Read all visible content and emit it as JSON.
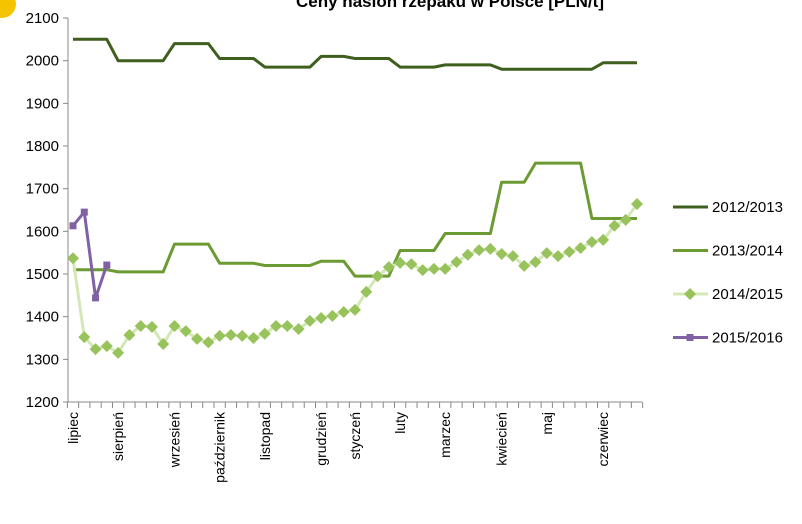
{
  "chart_data": {
    "type": "line",
    "title": "Ceny nasion rzepaku w Polsce [PLN/t]",
    "categories": [
      "lipiec",
      null,
      null,
      null,
      "sierpień",
      null,
      null,
      null,
      null,
      "wrzesień",
      null,
      null,
      null,
      "październik",
      null,
      null,
      null,
      "listopad",
      null,
      null,
      null,
      null,
      "grudzień",
      null,
      null,
      "styczeń",
      null,
      null,
      null,
      "luty",
      null,
      null,
      null,
      "marzec",
      null,
      null,
      null,
      null,
      "kwiecień",
      null,
      null,
      null,
      "maj",
      null,
      null,
      null,
      null,
      "czerwiec",
      null,
      null,
      null
    ],
    "ylim": [
      1200,
      2100
    ],
    "yticks": [
      1200,
      1300,
      1400,
      1500,
      1600,
      1700,
      1800,
      1900,
      2000,
      2100
    ],
    "grid": false,
    "legend": "right",
    "series": [
      {
        "name": "2012/2013",
        "color": "#3f5f1f",
        "marker": "none",
        "values": [
          2050,
          2050,
          2050,
          2050,
          2000,
          2000,
          2000,
          2000,
          2000,
          2040,
          2040,
          2040,
          2040,
          2005,
          2005,
          2005,
          2005,
          1985,
          1985,
          1985,
          1985,
          1985,
          2010,
          2010,
          2010,
          2005,
          2005,
          2005,
          2005,
          1985,
          1985,
          1985,
          1985,
          1990,
          1990,
          1990,
          1990,
          1990,
          1980,
          1980,
          1980,
          1980,
          1980,
          1980,
          1980,
          1980,
          1980,
          1995,
          1995,
          1995,
          1995
        ]
      },
      {
        "name": "2013/2014",
        "color": "#6b9b32",
        "marker": "none",
        "values": [
          1510,
          1510,
          1510,
          1510,
          1505,
          1505,
          1505,
          1505,
          1505,
          1570,
          1570,
          1570,
          1570,
          1525,
          1525,
          1525,
          1525,
          1520,
          1520,
          1520,
          1520,
          1520,
          1530,
          1530,
          1530,
          1495,
          1495,
          1495,
          1495,
          1555,
          1555,
          1555,
          1555,
          1595,
          1595,
          1595,
          1595,
          1595,
          1715,
          1715,
          1715,
          1760,
          1760,
          1760,
          1760,
          1760,
          1630,
          1630,
          1630,
          1630,
          1630
        ]
      },
      {
        "name": "2014/2015",
        "color": "#98c25c",
        "marker": "diamond",
        "values": [
          1537,
          1352,
          1324,
          1331,
          1315,
          1357,
          1378,
          1376,
          1336,
          1378,
          1366,
          1348,
          1340,
          1355,
          1357,
          1355,
          1350,
          1360,
          1378,
          1378,
          1371,
          1390,
          1397,
          1402,
          1411,
          1416,
          1458,
          1495,
          1516,
          1526,
          1523,
          1509,
          1512,
          1512,
          1528,
          1545,
          1556,
          1559,
          1547,
          1542,
          1519,
          1528,
          1549,
          1542,
          1552,
          1561,
          1575,
          1580,
          1613,
          1627,
          1664
        ]
      },
      {
        "name": "2015/2016",
        "color": "#8062a4",
        "marker": "square",
        "values": [
          1613,
          1645,
          1444,
          1521,
          null,
          null,
          null,
          null,
          null,
          null,
          null,
          null,
          null,
          null,
          null,
          null,
          null,
          null,
          null,
          null,
          null,
          null,
          null,
          null,
          null,
          null,
          null,
          null,
          null,
          null,
          null,
          null,
          null,
          null,
          null,
          null,
          null,
          null,
          null,
          null,
          null,
          null,
          null,
          null,
          null,
          null,
          null,
          null,
          null,
          null,
          null
        ]
      }
    ]
  }
}
